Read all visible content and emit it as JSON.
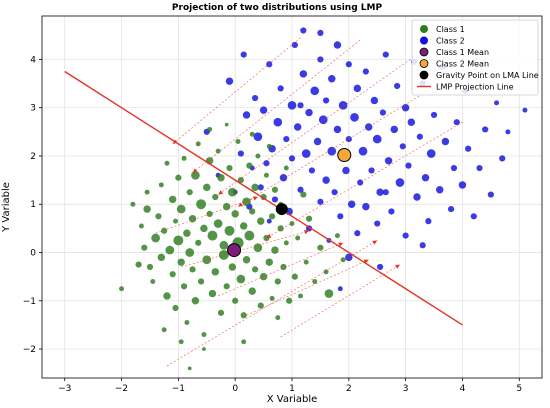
{
  "chart_data": {
    "type": "scatter",
    "title": "Projection of two distributions using LMP",
    "xlabel": "X Variable",
    "ylabel": "Y Variable",
    "xlim": [
      -3.4,
      5.4
    ],
    "ylim": [
      -2.6,
      4.9
    ],
    "x_ticks": [
      -3,
      -2,
      -1,
      0,
      1,
      2,
      3,
      4,
      5
    ],
    "y_ticks": [
      -2,
      -1,
      0,
      1,
      2,
      3,
      4
    ],
    "grid": true,
    "legend_position": "top-right",
    "legend": [
      {
        "label": "Class 1",
        "marker": "circle",
        "color": "#2e7d20"
      },
      {
        "label": "Class 2",
        "marker": "circle",
        "color": "#1010e0"
      },
      {
        "label": "Class 1 Mean",
        "marker": "circle",
        "color": "#7b1f7b"
      },
      {
        "label": "Class 2 Mean",
        "marker": "circle",
        "color": "#f4a93a"
      },
      {
        "label": "Gravity Point on LMA Line",
        "marker": "circle",
        "color": "#000000"
      },
      {
        "label": "LMP Projection Line",
        "marker": "line",
        "color": "#e53322"
      }
    ],
    "colors": {
      "class1": "#2e7d20",
      "class2": "#1010e0",
      "class1_mean": "#7b1f7b",
      "class2_mean": "#f4a93a",
      "gravity_point": "#000000",
      "projection_line": "#e53322"
    },
    "projection_line": {
      "x": [
        -3.0,
        4.0
      ],
      "y": [
        3.75,
        -1.5
      ]
    },
    "class1_mean": {
      "x": -0.02,
      "y": 0.05
    },
    "class2_mean": {
      "x": 1.92,
      "y": 2.02
    },
    "gravity_point": {
      "x": 0.82,
      "y": 0.9
    },
    "projection_arrows": [
      {
        "from": [
          1.15,
          4.45
        ],
        "to": [
          -1.1,
          2.25
        ]
      },
      {
        "from": [
          2.2,
          4.4
        ],
        "to": [
          -0.75,
          1.65
        ]
      },
      {
        "from": [
          3.2,
          4.1
        ],
        "to": [
          -0.3,
          1.2
        ]
      },
      {
        "from": [
          3.6,
          3.5
        ],
        "to": [
          0.05,
          0.95
        ]
      },
      {
        "from": [
          4.0,
          2.7
        ],
        "to": [
          0.55,
          0.3
        ]
      },
      {
        "from": [
          -1.4,
          0.4
        ],
        "to": [
          0.4,
          1.15
        ]
      },
      {
        "from": [
          -0.95,
          -0.3
        ],
        "to": [
          1.3,
          0.45
        ]
      },
      {
        "from": [
          -0.3,
          -0.9
        ],
        "to": [
          1.9,
          0.2
        ]
      },
      {
        "from": [
          0.2,
          -1.3
        ],
        "to": [
          2.35,
          -0.15
        ]
      },
      {
        "from": [
          0.8,
          -1.75
        ],
        "to": [
          2.9,
          -0.25
        ]
      },
      {
        "from": [
          -1.2,
          -2.35
        ],
        "to": [
          2.5,
          0.25
        ]
      }
    ],
    "class1_points": [
      [
        -2.0,
        -0.75,
        4
      ],
      [
        -1.8,
        1.0,
        4
      ],
      [
        -1.65,
        0.55,
        4
      ],
      [
        -1.6,
        0.1,
        5
      ],
      [
        -1.55,
        0.9,
        6
      ],
      [
        -1.5,
        -0.3,
        5
      ],
      [
        -1.45,
        -0.6,
        4
      ],
      [
        -1.4,
        0.3,
        7
      ],
      [
        -1.35,
        0.75,
        5
      ],
      [
        -1.3,
        -0.1,
        6
      ],
      [
        -1.3,
        1.4,
        4
      ],
      [
        -1.25,
        0.45,
        5
      ],
      [
        -1.2,
        -0.9,
        6
      ],
      [
        -1.2,
        1.85,
        4
      ],
      [
        -1.15,
        0.05,
        7
      ],
      [
        -1.1,
        -0.45,
        5
      ],
      [
        -1.1,
        1.1,
        6
      ],
      [
        -1.05,
        0.65,
        4
      ],
      [
        -1.05,
        -1.15,
        5
      ],
      [
        -1.0,
        0.25,
        8
      ],
      [
        -1.0,
        1.55,
        5
      ],
      [
        -0.95,
        -0.2,
        6
      ],
      [
        -0.95,
        0.9,
        7
      ],
      [
        -0.9,
        -0.7,
        5
      ],
      [
        -0.9,
        1.95,
        4
      ],
      [
        -0.85,
        0.4,
        6
      ],
      [
        -0.85,
        -1.45,
        4
      ],
      [
        -0.8,
        1.25,
        5
      ],
      [
        -0.8,
        0.0,
        7
      ],
      [
        -0.8,
        -2.4,
        3
      ],
      [
        -0.75,
        0.7,
        6
      ],
      [
        -0.75,
        -0.35,
        5
      ],
      [
        -0.7,
        1.6,
        7
      ],
      [
        -0.7,
        -1.0,
        6
      ],
      [
        -0.65,
        0.2,
        5
      ],
      [
        -0.65,
        2.25,
        4
      ],
      [
        -0.6,
        1.0,
        8
      ],
      [
        -0.6,
        -0.6,
        5
      ],
      [
        -0.55,
        0.5,
        6
      ],
      [
        -0.55,
        -1.7,
        4
      ],
      [
        -0.5,
        1.35,
        6
      ],
      [
        -0.5,
        -0.15,
        7
      ],
      [
        -0.45,
        0.8,
        5
      ],
      [
        -0.45,
        1.9,
        6
      ],
      [
        -0.4,
        -0.85,
        6
      ],
      [
        -0.4,
        0.35,
        8
      ],
      [
        -0.35,
        1.15,
        5
      ],
      [
        -0.35,
        -0.4,
        6
      ],
      [
        -0.3,
        2.1,
        4
      ],
      [
        -0.3,
        0.6,
        7
      ],
      [
        -0.25,
        -1.25,
        5
      ],
      [
        -0.25,
        1.55,
        6
      ],
      [
        -0.2,
        0.15,
        7
      ],
      [
        -0.2,
        -0.05,
        8
      ],
      [
        -0.15,
        0.95,
        6
      ],
      [
        -0.15,
        -0.7,
        5
      ],
      [
        -0.1,
        1.75,
        5
      ],
      [
        -0.1,
        0.45,
        8
      ],
      [
        -0.05,
        -0.3,
        6
      ],
      [
        -0.05,
        1.25,
        7
      ],
      [
        0.0,
        -1.0,
        5
      ],
      [
        0.0,
        0.8,
        6
      ],
      [
        0.05,
        0.2,
        9
      ],
      [
        0.05,
        2.3,
        4
      ],
      [
        0.1,
        -0.55,
        7
      ],
      [
        0.1,
        1.5,
        5
      ],
      [
        0.15,
        0.55,
        6
      ],
      [
        0.15,
        -1.3,
        5
      ],
      [
        0.2,
        1.05,
        7
      ],
      [
        0.2,
        -0.15,
        6
      ],
      [
        0.25,
        1.8,
        5
      ],
      [
        0.25,
        0.35,
        8
      ],
      [
        0.3,
        -0.8,
        6
      ],
      [
        0.3,
        0.85,
        5
      ],
      [
        0.35,
        1.35,
        6
      ],
      [
        0.35,
        -0.35,
        5
      ],
      [
        0.4,
        0.1,
        7
      ],
      [
        0.4,
        2.0,
        4
      ],
      [
        0.45,
        -1.1,
        5
      ],
      [
        0.45,
        0.65,
        6
      ],
      [
        0.5,
        1.15,
        5
      ],
      [
        0.5,
        -0.5,
        6
      ],
      [
        0.55,
        0.3,
        5
      ],
      [
        0.55,
        1.6,
        4
      ],
      [
        0.6,
        -0.2,
        6
      ],
      [
        0.65,
        0.75,
        5
      ],
      [
        0.65,
        -0.95,
        4
      ],
      [
        0.7,
        1.3,
        5
      ],
      [
        0.7,
        0.05,
        6
      ],
      [
        0.75,
        -0.6,
        5
      ],
      [
        0.8,
        0.5,
        5
      ],
      [
        0.8,
        1.0,
        4
      ],
      [
        0.85,
        -0.3,
        5
      ],
      [
        0.9,
        0.2,
        4
      ],
      [
        0.95,
        -1.0,
        5
      ],
      [
        1.0,
        0.6,
        4
      ],
      [
        1.05,
        -0.5,
        5
      ],
      [
        1.1,
        0.3,
        4
      ],
      [
        1.15,
        -0.9,
        4
      ],
      [
        1.2,
        1.2,
        5
      ],
      [
        1.25,
        -0.2,
        4
      ],
      [
        1.3,
        0.7,
        5
      ],
      [
        1.4,
        -0.6,
        4
      ],
      [
        1.5,
        0.1,
        5
      ],
      [
        1.6,
        -0.4,
        4
      ],
      [
        1.65,
        -0.85,
        7
      ],
      [
        1.8,
        0.35,
        4
      ],
      [
        1.9,
        -0.15,
        4
      ],
      [
        -1.7,
        -0.25,
        5
      ],
      [
        -1.55,
        1.25,
        4
      ],
      [
        -0.45,
        2.55,
        4
      ],
      [
        0.3,
        2.45,
        4
      ],
      [
        -0.15,
        2.65,
        3
      ],
      [
        0.6,
        2.2,
        4
      ],
      [
        0.9,
        1.75,
        4
      ],
      [
        -1.25,
        -1.6,
        4
      ],
      [
        -0.55,
        -2.0,
        3
      ],
      [
        0.15,
        -1.85,
        4
      ],
      [
        -0.95,
        -1.85,
        4
      ],
      [
        0.75,
        -1.35,
        4
      ]
    ],
    "class2_points": [
      [
        -0.5,
        2.5,
        5
      ],
      [
        -0.3,
        1.6,
        4
      ],
      [
        -0.1,
        3.55,
        6
      ],
      [
        0.0,
        1.25,
        4
      ],
      [
        0.1,
        2.05,
        5
      ],
      [
        0.2,
        2.85,
        6
      ],
      [
        0.25,
        0.95,
        5
      ],
      [
        0.3,
        1.75,
        4
      ],
      [
        0.35,
        3.2,
        5
      ],
      [
        0.4,
        2.4,
        7
      ],
      [
        0.45,
        1.35,
        5
      ],
      [
        0.5,
        2.95,
        6
      ],
      [
        0.55,
        1.85,
        5
      ],
      [
        0.6,
        0.65,
        4
      ],
      [
        0.6,
        3.9,
        5
      ],
      [
        0.65,
        2.15,
        6
      ],
      [
        0.7,
        1.1,
        5
      ],
      [
        0.75,
        2.7,
        7
      ],
      [
        0.8,
        3.4,
        5
      ],
      [
        0.85,
        1.55,
        6
      ],
      [
        0.9,
        2.35,
        5
      ],
      [
        0.95,
        0.85,
        6
      ],
      [
        1.0,
        3.05,
        7
      ],
      [
        1.0,
        1.95,
        5
      ],
      [
        1.05,
        4.3,
        5
      ],
      [
        1.1,
        2.6,
        6
      ],
      [
        1.15,
        1.3,
        5
      ],
      [
        1.2,
        3.7,
        6
      ],
      [
        1.25,
        2.05,
        7
      ],
      [
        1.3,
        0.5,
        5
      ],
      [
        1.3,
        2.9,
        6
      ],
      [
        1.35,
        1.7,
        5
      ],
      [
        1.4,
        3.35,
        7
      ],
      [
        1.45,
        2.3,
        6
      ],
      [
        1.5,
        1.05,
        5
      ],
      [
        1.5,
        4.0,
        5
      ],
      [
        1.55,
        2.75,
        7
      ],
      [
        1.6,
        1.5,
        6
      ],
      [
        1.6,
        3.15,
        5
      ],
      [
        1.65,
        0.25,
        4
      ],
      [
        1.7,
        2.1,
        7
      ],
      [
        1.7,
        3.6,
        6
      ],
      [
        1.75,
        1.25,
        5
      ],
      [
        1.8,
        2.55,
        6
      ],
      [
        1.8,
        4.3,
        6
      ],
      [
        1.85,
        0.75,
        5
      ],
      [
        1.9,
        3.05,
        7
      ],
      [
        1.95,
        1.7,
        6
      ],
      [
        2.0,
        2.35,
        5
      ],
      [
        2.0,
        3.9,
        5
      ],
      [
        2.05,
        1.0,
        6
      ],
      [
        2.1,
        2.8,
        7
      ],
      [
        2.15,
        0.4,
        5
      ],
      [
        2.15,
        3.4,
        6
      ],
      [
        2.2,
        1.45,
        5
      ],
      [
        2.25,
        2.1,
        7
      ],
      [
        2.3,
        3.75,
        5
      ],
      [
        2.3,
        0.95,
        6
      ],
      [
        2.35,
        2.6,
        6
      ],
      [
        2.4,
        1.7,
        5
      ],
      [
        2.45,
        3.15,
        6
      ],
      [
        2.5,
        0.6,
        5
      ],
      [
        2.5,
        2.35,
        7
      ],
      [
        2.55,
        1.25,
        6
      ],
      [
        2.6,
        2.9,
        5
      ],
      [
        2.65,
        4.1,
        5
      ],
      [
        2.7,
        1.9,
        6
      ],
      [
        2.75,
        0.85,
        5
      ],
      [
        2.8,
        2.55,
        6
      ],
      [
        2.85,
        3.45,
        5
      ],
      [
        2.9,
        1.45,
        7
      ],
      [
        2.95,
        2.2,
        5
      ],
      [
        3.0,
        0.35,
        5
      ],
      [
        3.0,
        3.0,
        6
      ],
      [
        3.05,
        1.8,
        5
      ],
      [
        3.1,
        2.7,
        6
      ],
      [
        3.2,
        1.15,
        6
      ],
      [
        3.25,
        2.4,
        5
      ],
      [
        3.3,
        3.5,
        5
      ],
      [
        3.35,
        1.55,
        6
      ],
      [
        3.4,
        0.65,
        5
      ],
      [
        3.45,
        2.05,
        7
      ],
      [
        3.5,
        2.85,
        5
      ],
      [
        3.6,
        1.3,
        6
      ],
      [
        3.65,
        3.85,
        5
      ],
      [
        3.7,
        2.3,
        6
      ],
      [
        3.8,
        0.9,
        5
      ],
      [
        3.85,
        1.75,
        5
      ],
      [
        3.9,
        2.7,
        5
      ],
      [
        4.0,
        1.4,
        6
      ],
      [
        4.05,
        3.35,
        5
      ],
      [
        4.1,
        2.15,
        5
      ],
      [
        4.2,
        0.75,
        5
      ],
      [
        4.3,
        1.75,
        5
      ],
      [
        4.4,
        2.55,
        5
      ],
      [
        4.5,
        1.2,
        5
      ],
      [
        4.6,
        3.1,
        4
      ],
      [
        4.7,
        1.95,
        5
      ],
      [
        4.8,
        2.5,
        4
      ],
      [
        5.1,
        2.95,
        4
      ],
      [
        1.5,
        4.55,
        5
      ],
      [
        1.2,
        4.6,
        5
      ],
      [
        0.15,
        4.1,
        5
      ],
      [
        1.15,
        3.05,
        5
      ],
      [
        2.65,
        1.25,
        5
      ],
      [
        3.15,
        3.95,
        5
      ],
      [
        2.0,
        -0.1,
        6
      ],
      [
        2.55,
        -0.3,
        5
      ],
      [
        3.3,
        0.15,
        5
      ],
      [
        1.85,
        -0.75,
        4
      ]
    ]
  }
}
